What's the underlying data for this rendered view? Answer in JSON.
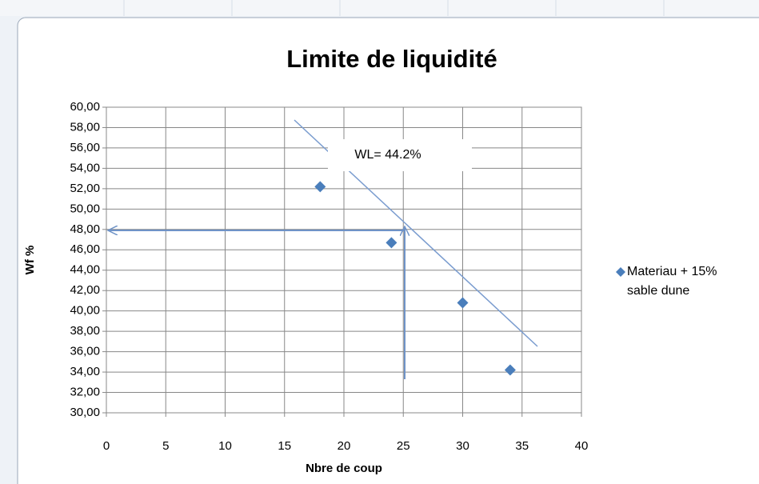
{
  "chart_data": {
    "type": "scatter",
    "title": "Limite de liquidité",
    "xlabel": "Nbre de coup",
    "ylabel": "Wf %",
    "annotation": "WL= 44.2%",
    "x": [
      18,
      24,
      30,
      34
    ],
    "series": [
      {
        "name": "Materiau + 15% sable dune",
        "color": "#4a7ebb",
        "values": [
          52.2,
          46.7,
          40.8,
          34.2
        ]
      }
    ],
    "xlim": [
      0,
      40
    ],
    "xticks": [
      0,
      5,
      10,
      15,
      20,
      25,
      30,
      35,
      40
    ],
    "ylim": [
      30,
      60
    ],
    "yticks": [
      {
        "value": 30,
        "label": "30,00"
      },
      {
        "value": 32,
        "label": "32,00"
      },
      {
        "value": 34,
        "label": "34,00"
      },
      {
        "value": 36,
        "label": "36,00"
      },
      {
        "value": 38,
        "label": "38,00"
      },
      {
        "value": 40,
        "label": "40,00"
      },
      {
        "value": 42,
        "label": "42,00"
      },
      {
        "value": 44,
        "label": "44,00"
      },
      {
        "value": 46,
        "label": "46,00"
      },
      {
        "value": 48,
        "label": "48,00"
      },
      {
        "value": 50,
        "label": "50,00"
      },
      {
        "value": 52,
        "label": "52,00"
      },
      {
        "value": 54,
        "label": "54,00"
      },
      {
        "value": 56,
        "label": "56,00"
      },
      {
        "value": 58,
        "label": "58,00"
      },
      {
        "value": 60,
        "label": "60,00"
      }
    ],
    "grid": true,
    "legend": "right"
  }
}
